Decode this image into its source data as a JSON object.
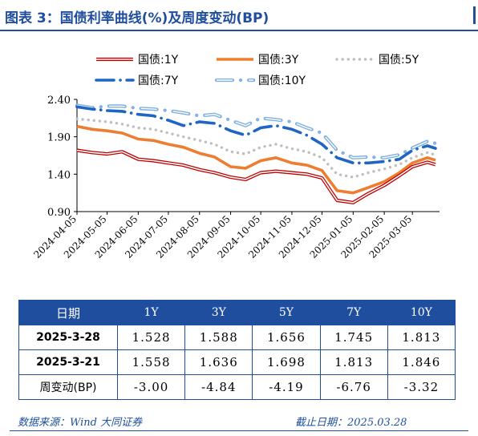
{
  "title": "图表 3：国债利率曲线(%)及周度变动(BP)",
  "chart_data": {
    "type": "line",
    "ylim": [
      0.9,
      2.4
    ],
    "yticks": [
      "2.40",
      "1.90",
      "1.40",
      "0.90"
    ],
    "xticks": [
      "2024-04-05",
      "2024-05-05",
      "2024-06-05",
      "2024-07-05",
      "2024-08-05",
      "2024-09-05",
      "2024-10-05",
      "2024-11-05",
      "2024-12-05",
      "2025-01-05",
      "2025-02-05",
      "2025-03-05"
    ],
    "x_start": "2024-04-05",
    "x_end": "2025-04-01",
    "legend_position": "top",
    "series": [
      {
        "name": "国债:1Y",
        "key": "y1",
        "color": "#c00000",
        "style": "double",
        "points": [
          [
            "2024-04-05",
            1.72
          ],
          [
            "2024-04-20",
            1.69
          ],
          [
            "2024-05-05",
            1.67
          ],
          [
            "2024-05-20",
            1.7
          ],
          [
            "2024-06-05",
            1.6
          ],
          [
            "2024-06-20",
            1.58
          ],
          [
            "2024-07-05",
            1.55
          ],
          [
            "2024-07-20",
            1.52
          ],
          [
            "2024-08-05",
            1.46
          ],
          [
            "2024-08-20",
            1.42
          ],
          [
            "2024-09-05",
            1.36
          ],
          [
            "2024-09-20",
            1.33
          ],
          [
            "2024-10-05",
            1.42
          ],
          [
            "2024-10-20",
            1.44
          ],
          [
            "2024-11-05",
            1.42
          ],
          [
            "2024-11-20",
            1.4
          ],
          [
            "2024-12-05",
            1.35
          ],
          [
            "2024-12-20",
            1.05
          ],
          [
            "2025-01-05",
            1.02
          ],
          [
            "2025-01-20",
            1.14
          ],
          [
            "2025-02-05",
            1.25
          ],
          [
            "2025-02-20",
            1.38
          ],
          [
            "2025-03-05",
            1.5
          ],
          [
            "2025-03-20",
            1.56
          ],
          [
            "2025-03-28",
            1.528
          ]
        ]
      },
      {
        "name": "国债:3Y",
        "key": "y3",
        "color": "#ed7d31",
        "style": "thick",
        "points": [
          [
            "2024-04-05",
            2.04
          ],
          [
            "2024-04-20",
            2.0
          ],
          [
            "2024-05-05",
            1.98
          ],
          [
            "2024-05-20",
            1.95
          ],
          [
            "2024-06-05",
            1.87
          ],
          [
            "2024-06-20",
            1.85
          ],
          [
            "2024-07-05",
            1.8
          ],
          [
            "2024-07-20",
            1.76
          ],
          [
            "2024-08-05",
            1.68
          ],
          [
            "2024-08-20",
            1.63
          ],
          [
            "2024-09-05",
            1.5
          ],
          [
            "2024-09-20",
            1.48
          ],
          [
            "2024-10-05",
            1.58
          ],
          [
            "2024-10-20",
            1.62
          ],
          [
            "2024-11-05",
            1.55
          ],
          [
            "2024-11-20",
            1.52
          ],
          [
            "2024-12-05",
            1.45
          ],
          [
            "2024-12-20",
            1.18
          ],
          [
            "2025-01-05",
            1.15
          ],
          [
            "2025-01-20",
            1.22
          ],
          [
            "2025-02-05",
            1.3
          ],
          [
            "2025-02-20",
            1.42
          ],
          [
            "2025-03-05",
            1.55
          ],
          [
            "2025-03-20",
            1.62
          ],
          [
            "2025-03-28",
            1.588
          ]
        ]
      },
      {
        "name": "国债:5Y",
        "key": "y5",
        "color": "#bfbfbf",
        "style": "dotted",
        "points": [
          [
            "2024-04-05",
            2.14
          ],
          [
            "2024-04-20",
            2.12
          ],
          [
            "2024-05-05",
            2.1
          ],
          [
            "2024-05-20",
            2.07
          ],
          [
            "2024-06-05",
            2.02
          ],
          [
            "2024-06-20",
            2.0
          ],
          [
            "2024-07-05",
            1.95
          ],
          [
            "2024-07-20",
            1.9
          ],
          [
            "2024-08-05",
            1.85
          ],
          [
            "2024-08-20",
            1.8
          ],
          [
            "2024-09-05",
            1.7
          ],
          [
            "2024-09-20",
            1.67
          ],
          [
            "2024-10-05",
            1.76
          ],
          [
            "2024-10-20",
            1.8
          ],
          [
            "2024-11-05",
            1.74
          ],
          [
            "2024-11-20",
            1.7
          ],
          [
            "2024-12-05",
            1.62
          ],
          [
            "2024-12-20",
            1.4
          ],
          [
            "2025-01-05",
            1.36
          ],
          [
            "2025-01-20",
            1.42
          ],
          [
            "2025-02-05",
            1.47
          ],
          [
            "2025-02-20",
            1.53
          ],
          [
            "2025-03-05",
            1.62
          ],
          [
            "2025-03-20",
            1.69
          ],
          [
            "2025-03-28",
            1.656
          ]
        ]
      },
      {
        "name": "国债:7Y",
        "key": "y7",
        "color": "#1f66c4",
        "style": "dashdot",
        "points": [
          [
            "2024-04-05",
            2.3
          ],
          [
            "2024-04-20",
            2.27
          ],
          [
            "2024-05-05",
            2.25
          ],
          [
            "2024-05-20",
            2.24
          ],
          [
            "2024-06-05",
            2.2
          ],
          [
            "2024-06-20",
            2.18
          ],
          [
            "2024-07-05",
            2.12
          ],
          [
            "2024-07-20",
            2.05
          ],
          [
            "2024-08-05",
            2.1
          ],
          [
            "2024-08-20",
            2.08
          ],
          [
            "2024-09-05",
            1.98
          ],
          [
            "2024-09-20",
            1.92
          ],
          [
            "2024-10-05",
            2.02
          ],
          [
            "2024-10-20",
            2.05
          ],
          [
            "2024-11-05",
            2.0
          ],
          [
            "2024-11-20",
            1.92
          ],
          [
            "2024-12-05",
            1.8
          ],
          [
            "2024-12-20",
            1.62
          ],
          [
            "2025-01-05",
            1.55
          ],
          [
            "2025-01-20",
            1.55
          ],
          [
            "2025-02-05",
            1.57
          ],
          [
            "2025-02-20",
            1.6
          ],
          [
            "2025-03-05",
            1.72
          ],
          [
            "2025-03-20",
            1.78
          ],
          [
            "2025-03-28",
            1.745
          ]
        ]
      },
      {
        "name": "国债:10Y",
        "key": "y10",
        "color": "#7fb0e0",
        "style": "hollow",
        "points": [
          [
            "2024-04-05",
            2.32
          ],
          [
            "2024-04-20",
            2.29
          ],
          [
            "2024-05-05",
            2.31
          ],
          [
            "2024-05-20",
            2.31
          ],
          [
            "2024-06-05",
            2.28
          ],
          [
            "2024-06-20",
            2.27
          ],
          [
            "2024-07-05",
            2.25
          ],
          [
            "2024-07-20",
            2.22
          ],
          [
            "2024-08-05",
            2.18
          ],
          [
            "2024-08-20",
            2.2
          ],
          [
            "2024-09-05",
            2.12
          ],
          [
            "2024-09-20",
            2.05
          ],
          [
            "2024-10-05",
            2.15
          ],
          [
            "2024-10-20",
            2.13
          ],
          [
            "2024-11-05",
            2.1
          ],
          [
            "2024-11-20",
            2.02
          ],
          [
            "2024-12-05",
            1.95
          ],
          [
            "2024-12-20",
            1.72
          ],
          [
            "2025-01-05",
            1.62
          ],
          [
            "2025-01-20",
            1.63
          ],
          [
            "2025-02-05",
            1.62
          ],
          [
            "2025-02-20",
            1.66
          ],
          [
            "2025-03-05",
            1.75
          ],
          [
            "2025-03-20",
            1.84
          ],
          [
            "2025-03-28",
            1.813
          ]
        ]
      }
    ]
  },
  "table": {
    "headers": [
      "日期",
      "1Y",
      "3Y",
      "5Y",
      "7Y",
      "10Y"
    ],
    "rows": [
      {
        "label": "2025-3-28",
        "values": [
          "1.528",
          "1.588",
          "1.656",
          "1.745",
          "1.813"
        ]
      },
      {
        "label": "2025-3-21",
        "values": [
          "1.558",
          "1.636",
          "1.698",
          "1.813",
          "1.846"
        ]
      },
      {
        "label": "周变动(BP)",
        "values": [
          "-3.00",
          "-4.84",
          "-4.19",
          "-6.76",
          "-3.32"
        ]
      }
    ]
  },
  "footer": {
    "source": "数据来源：Wind 大同证券",
    "cutoff": "截止日期：2025.03.28"
  }
}
